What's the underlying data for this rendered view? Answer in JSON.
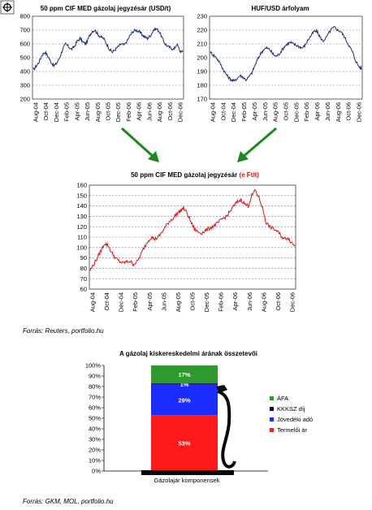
{
  "colors": {
    "usd_line": "#1f2a80",
    "huf_line": "#1f2a80",
    "eft_line": "#e01010",
    "arrow": "#1a8a1a",
    "grid": "#777777",
    "afa": "#2f9a2f",
    "kkksz": "#0a0a3a",
    "jovedeki": "#1b2cff",
    "termeloi": "#ff1a1a",
    "pump": "#0a0a0a"
  },
  "icons": {
    "zoom": "zoom-icon"
  },
  "chart_data": [
    {
      "type": "line",
      "title": "50 ppm CIF MED gázolaj jegyzésár (USD/t)",
      "ylim": [
        200,
        800
      ],
      "yticks": [
        "800",
        "700",
        "600",
        "500",
        "400",
        "300",
        "200"
      ],
      "x_start": "2004-08",
      "x_end": "2007-01",
      "xticks": [
        "Aug-04",
        "Oct-04",
        "Dec-04",
        "Feb-05",
        "Apr-05",
        "Jun-05",
        "Aug-05",
        "Oct-05",
        "Dec-05",
        "Feb-06",
        "Apr-06",
        "Jun-06",
        "Aug-06",
        "Oct-06",
        "Dec-06"
      ],
      "series": [
        {
          "values": [
            410,
            440,
            470,
            520,
            540,
            510,
            470,
            440,
            460,
            500,
            560,
            600,
            580,
            560,
            580,
            620,
            640,
            610,
            600,
            650,
            690,
            700,
            670,
            650,
            640,
            600,
            560,
            540,
            560,
            580,
            600,
            590,
            620,
            660,
            690,
            700,
            690,
            670,
            650,
            640,
            660,
            700,
            710,
            690,
            640,
            600,
            580,
            570,
            560,
            600,
            550,
            540
          ]
        }
      ]
    },
    {
      "type": "line",
      "title": "HUF/USD árfolyam",
      "ylim": [
        170,
        230
      ],
      "yticks": [
        "230",
        "220",
        "210",
        "200",
        "190",
        "180",
        "170"
      ],
      "x_start": "2004-08",
      "x_end": "2007-01",
      "xticks": [
        "Aug-04",
        "Oct-04",
        "Dec-04",
        "Feb-05",
        "Apr-05",
        "Jun-05",
        "Aug-05",
        "Oct-05",
        "Dec-05",
        "Feb-06",
        "Apr-06",
        "Jun-06",
        "Aug-06",
        "Oct-06",
        "Dec-06"
      ],
      "series": [
        {
          "values": [
            204,
            202,
            200,
            197,
            193,
            189,
            186,
            184,
            183,
            185,
            187,
            186,
            184,
            186,
            189,
            194,
            199,
            203,
            206,
            207,
            206,
            203,
            201,
            202,
            205,
            208,
            210,
            211,
            210,
            209,
            208,
            207,
            209,
            213,
            216,
            219,
            219,
            215,
            212,
            214,
            218,
            221,
            222,
            220,
            219,
            216,
            212,
            208,
            204,
            198,
            194,
            192
          ]
        }
      ]
    },
    {
      "type": "line",
      "title": "50 ppm CIF MED gázolaj jegyzésár",
      "title_suffix": "(e Ft/t)",
      "ylim": [
        60,
        160
      ],
      "yticks": [
        "160",
        "150",
        "140",
        "130",
        "120",
        "110",
        "100",
        "90",
        "80",
        "70",
        "60"
      ],
      "x_start": "2004-08",
      "x_end": "2007-01",
      "xticks": [
        "Aug-04",
        "Oct-04",
        "Dec-04",
        "Feb-05",
        "Apr-05",
        "Jun-05",
        "Aug-05",
        "Oct-05",
        "Dec-05",
        "Feb-06",
        "Apr-06",
        "Jun-06",
        "Aug-06",
        "Oct-06",
        "Dec-06"
      ],
      "series": [
        {
          "values": [
            78,
            84,
            90,
            97,
            104,
            102,
            95,
            90,
            87,
            85,
            86,
            87,
            84,
            86,
            92,
            100,
            106,
            110,
            108,
            110,
            115,
            120,
            125,
            128,
            132,
            135,
            138,
            133,
            125,
            118,
            115,
            114,
            116,
            118,
            120,
            122,
            125,
            128,
            130,
            135,
            140,
            144,
            146,
            142,
            140,
            150,
            155,
            148,
            138,
            124,
            120,
            118,
            116,
            112,
            108,
            110,
            105,
            102
          ]
        }
      ]
    },
    {
      "type": "bar",
      "stacked": true,
      "title": "A gázolaj kiskereskedelmi árának összetevői",
      "categories": [
        "Gázolajár komponensek"
      ],
      "yticks": [
        "100%",
        "90%",
        "80%",
        "70%",
        "60%",
        "50%",
        "40%",
        "30%",
        "20%",
        "10%",
        "0%"
      ],
      "ylim": [
        0,
        100
      ],
      "series": [
        {
          "name": "Termelői ár",
          "values": [
            53
          ],
          "label": "53%"
        },
        {
          "name": "Jövedéki adó",
          "values": [
            29
          ],
          "label": "29%"
        },
        {
          "name": "KKKSZ díj",
          "values": [
            1
          ],
          "label": "1%"
        },
        {
          "name": "ÁFA",
          "values": [
            17
          ],
          "label": "17%"
        }
      ],
      "legend_position": "right"
    }
  ],
  "sources": {
    "top": "Forrás: Reuters, portfolio.hu",
    "bottom": "Forrás: GKM, MOL, portfolio.hu"
  }
}
